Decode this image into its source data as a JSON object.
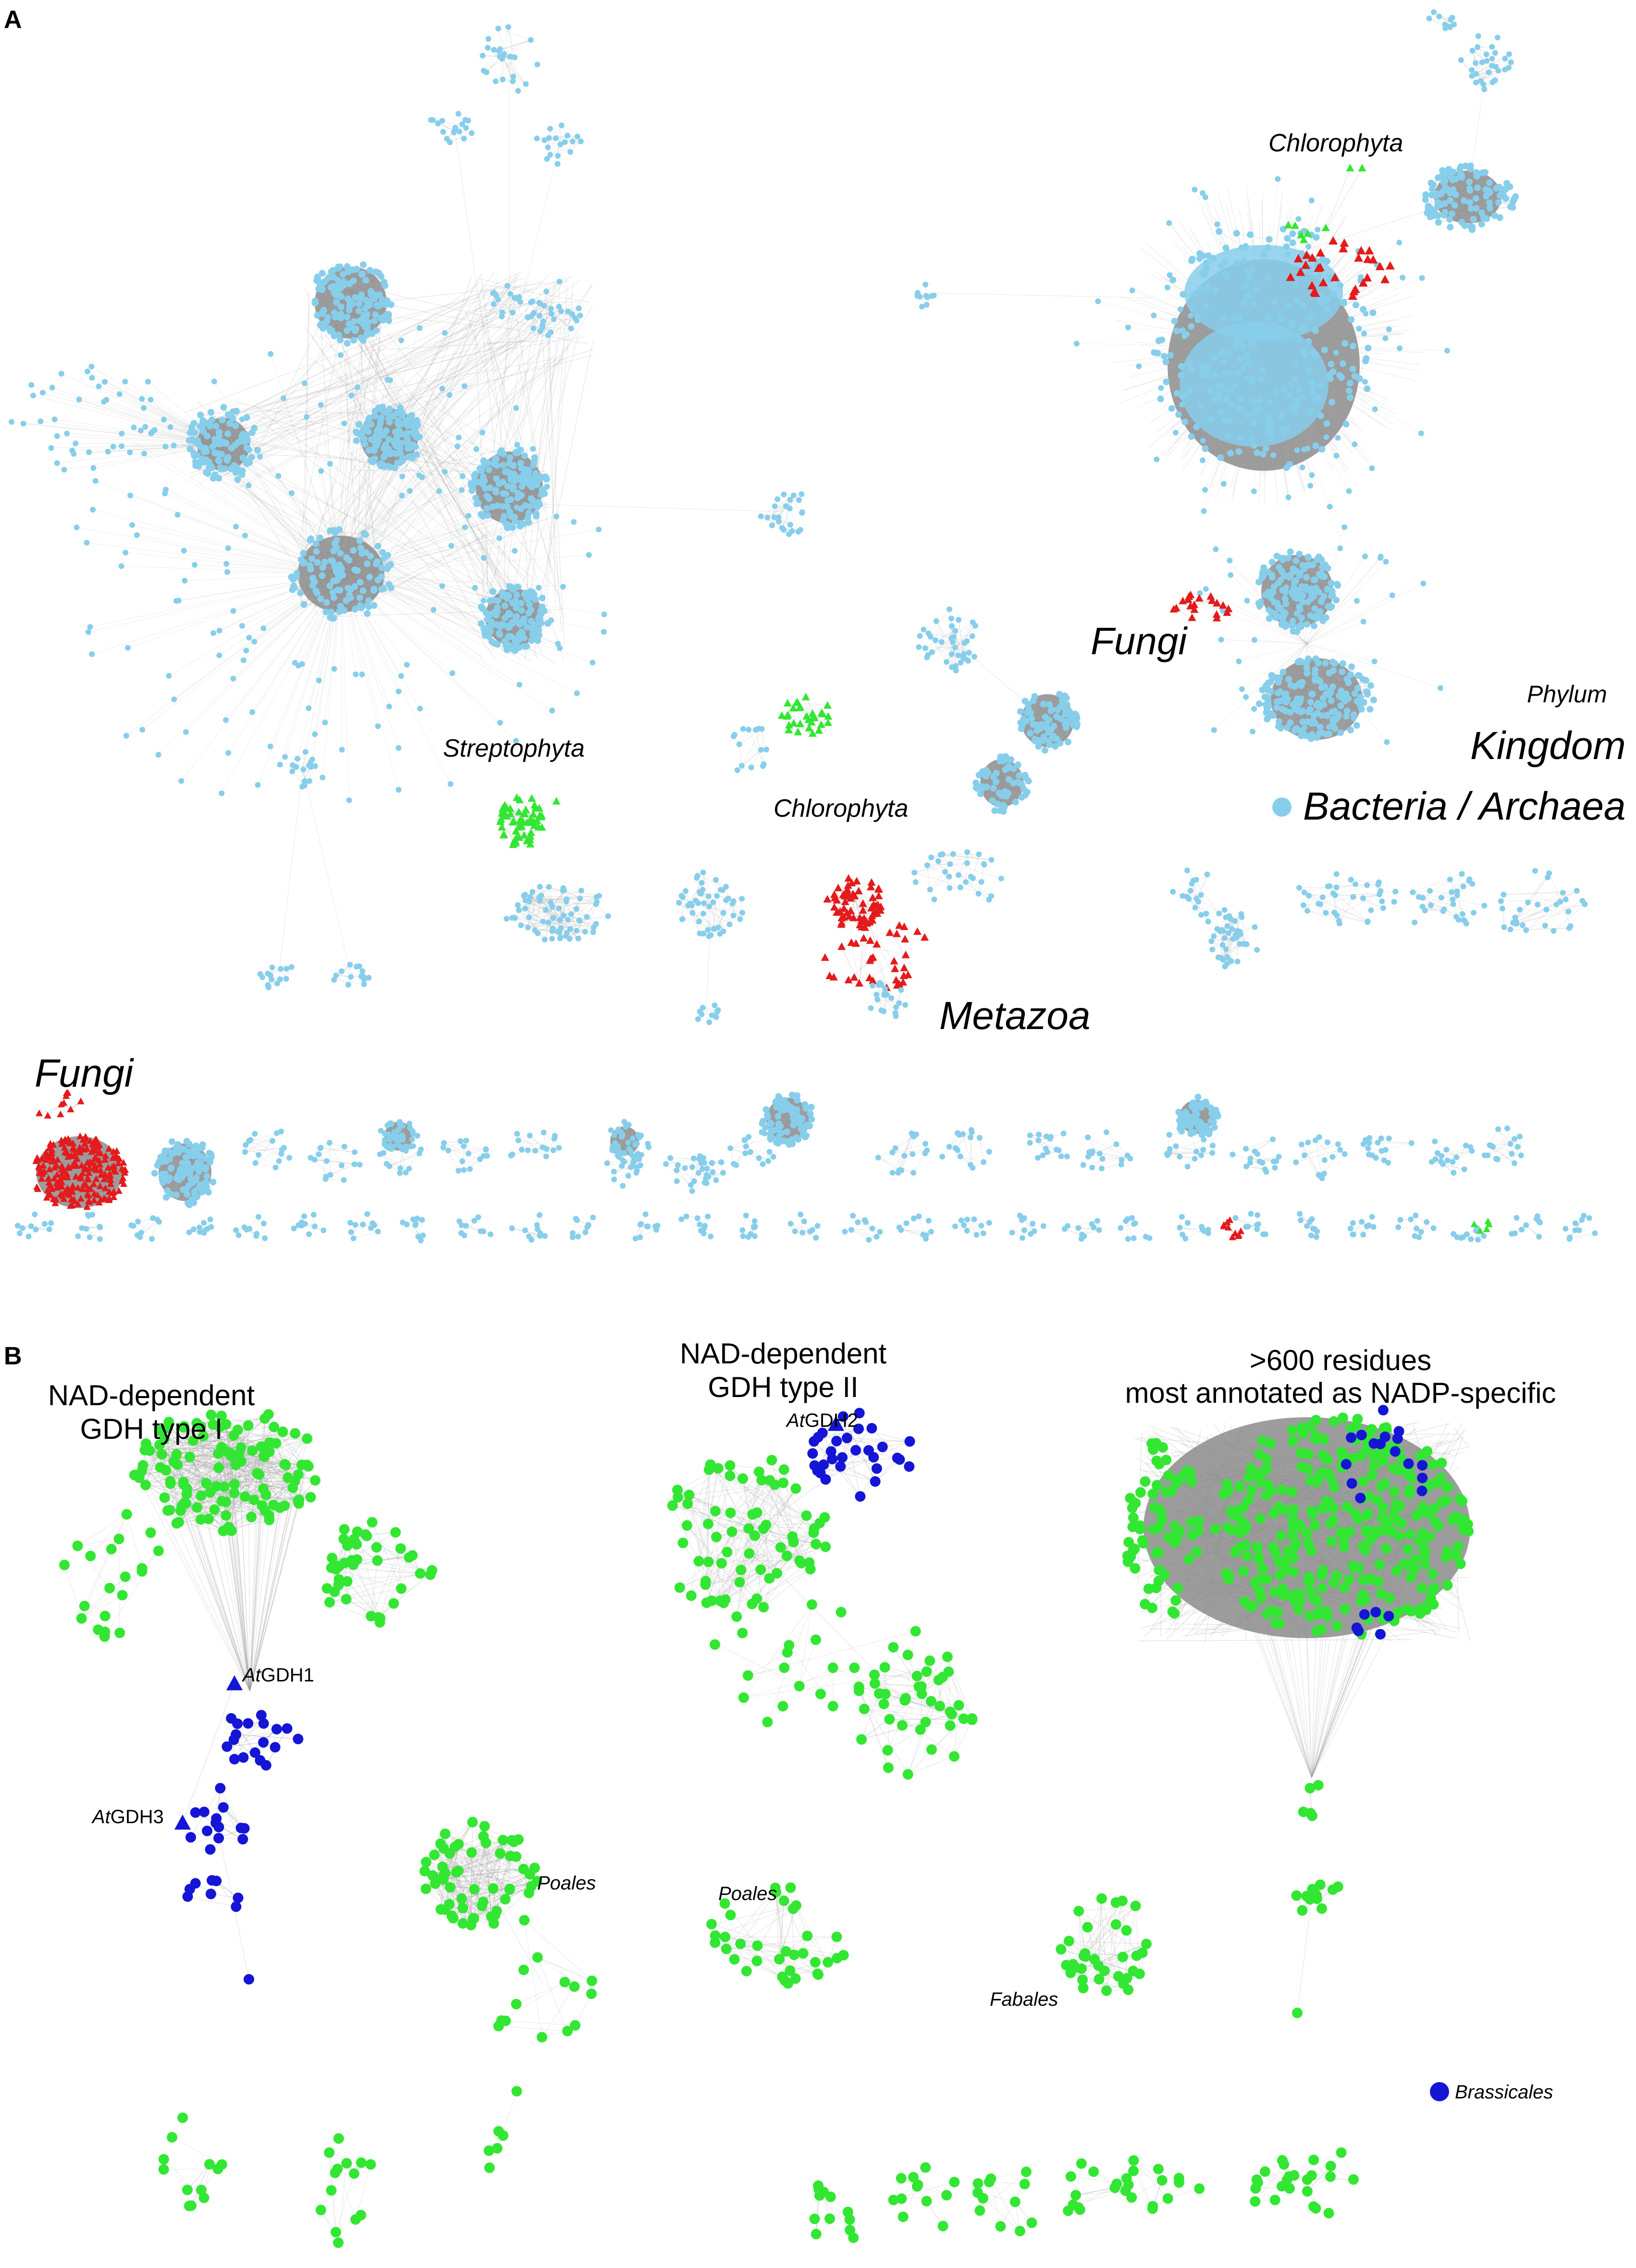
{
  "panel_a": {
    "letter": "A",
    "labels": {
      "chlorophyta_top": "Chlorophyta",
      "fungi_mid": "Fungi",
      "phylum": "Phylum",
      "kingdom": "Kingdom",
      "streptophyta": "Streptophyta",
      "chlorophyta_mid": "Chlorophyta",
      "bacteria_archaea": "Bacteria / Archaea",
      "metazoa": "Metazoa",
      "fungi_left": "Fungi"
    }
  },
  "panel_b": {
    "letter": "B",
    "titles": {
      "type1_line1": "NAD-dependent",
      "type1_line2": "GDH type I",
      "type2_line1": "NAD-dependent",
      "type2_line2": "GDH type II",
      "nadp_line1": ">600 residues",
      "nadp_line2": "most annotated as NADP-specific"
    },
    "gene_labels": {
      "gdh1_prefix": "At",
      "gdh1_suffix": "GDH1",
      "gdh2_prefix": "At",
      "gdh2_suffix": "GDH2",
      "gdh3_prefix": "At",
      "gdh3_suffix": "GDH3"
    },
    "cluster_labels": {
      "poales_1": "Poales",
      "poales_2": "Poales",
      "fabales": "Fabales"
    },
    "legend": {
      "brassicales": "Brassicales"
    }
  },
  "colors": {
    "bacteria_archaea": "#87ceeb",
    "eukaryote_red": "#e41a1c",
    "plant_green": "#33e633",
    "brassicales_blue": "#1515d6",
    "edge_gray": "#9a9a9a",
    "dense_core": "#8c8c8c"
  }
}
